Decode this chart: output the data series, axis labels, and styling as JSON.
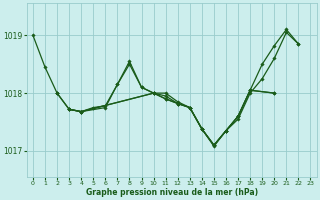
{
  "xlabel": "Graphe pression niveau de la mer (hPa)",
  "bg_color": "#cceeed",
  "grid_color": "#99cccc",
  "line_color": "#1a5c1a",
  "marker": "D",
  "marker_size": 1.8,
  "line_width": 0.9,
  "xlim": [
    -0.5,
    23.5
  ],
  "ylim": [
    1016.55,
    1019.55
  ],
  "yticks": [
    1017,
    1018,
    1019
  ],
  "xticks": [
    0,
    1,
    2,
    3,
    4,
    5,
    6,
    7,
    8,
    9,
    10,
    11,
    12,
    13,
    14,
    15,
    16,
    17,
    18,
    19,
    20,
    21,
    22,
    23
  ],
  "series": [
    {
      "x": [
        0,
        1,
        2
      ],
      "y": [
        1019.0,
        1018.45,
        1018.0
      ]
    },
    {
      "x": [
        2,
        3,
        4,
        5,
        6,
        7,
        8,
        9,
        10,
        11,
        12,
        13,
        14,
        15,
        16,
        17,
        18,
        19,
        20,
        21,
        22
      ],
      "y": [
        1018.0,
        1017.72,
        1017.68,
        1017.75,
        1017.78,
        1018.15,
        1018.5,
        1018.1,
        1018.0,
        1018.0,
        1017.85,
        1017.75,
        1017.38,
        1017.08,
        1017.35,
        1017.55,
        1018.0,
        1018.25,
        1018.6,
        1019.05,
        1018.85
      ]
    },
    {
      "x": [
        3,
        4,
        6,
        7,
        8,
        9,
        10,
        11,
        12,
        13,
        14,
        15,
        16,
        17,
        18,
        19,
        20,
        21,
        22
      ],
      "y": [
        1017.72,
        1017.68,
        1017.75,
        1018.15,
        1018.55,
        1018.1,
        1018.0,
        1017.95,
        1017.82,
        1017.75,
        1017.38,
        1017.1,
        1017.35,
        1017.6,
        1018.05,
        1018.5,
        1018.82,
        1019.1,
        1018.85
      ]
    },
    {
      "x": [
        3,
        4,
        10,
        11,
        12,
        13,
        14,
        15,
        16,
        17,
        18,
        20
      ],
      "y": [
        1017.72,
        1017.68,
        1018.0,
        1017.9,
        1017.82,
        1017.75,
        1017.38,
        1017.1,
        1017.35,
        1017.6,
        1018.05,
        1018.0
      ]
    },
    {
      "x": [
        2,
        3,
        4,
        10,
        11,
        12,
        13,
        14,
        15,
        16,
        17,
        18,
        20
      ],
      "y": [
        1018.0,
        1017.72,
        1017.68,
        1018.0,
        1017.9,
        1017.82,
        1017.75,
        1017.38,
        1017.1,
        1017.35,
        1017.6,
        1018.05,
        1018.0
      ]
    }
  ]
}
